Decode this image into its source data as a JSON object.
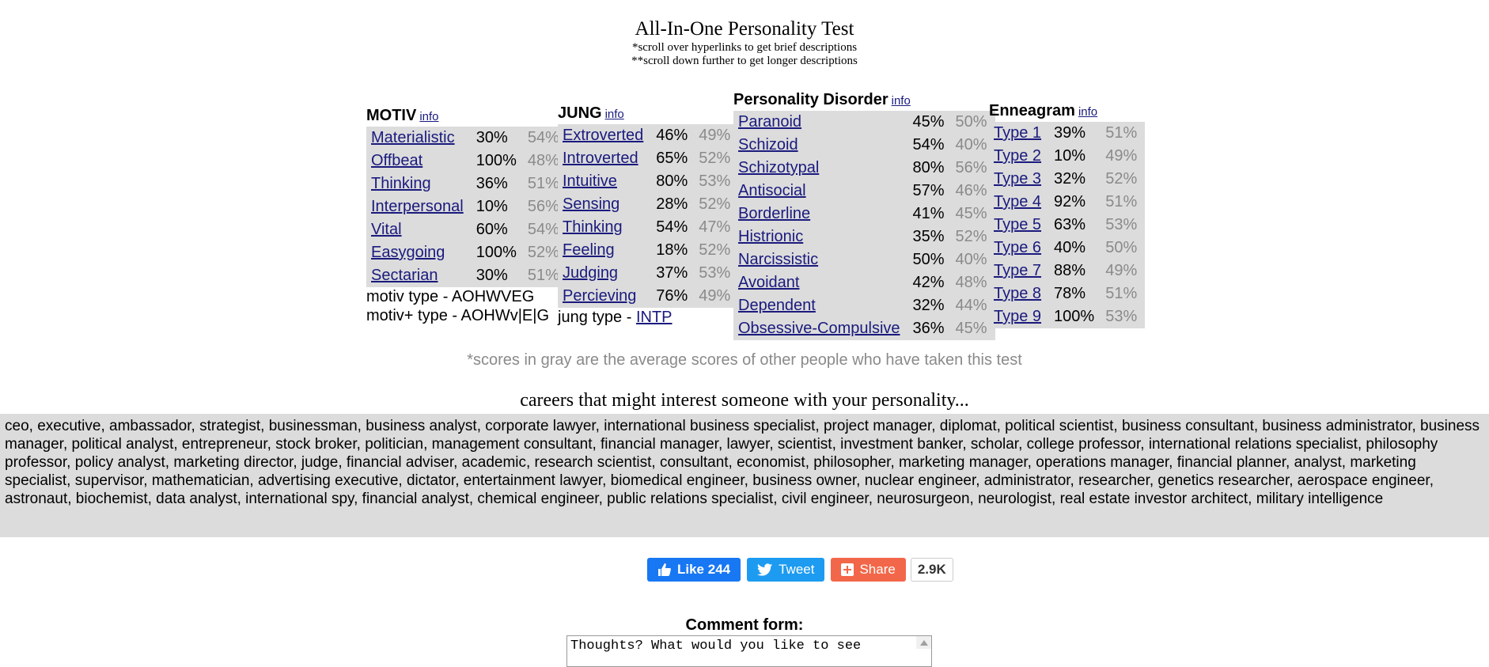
{
  "header": {
    "title": "All-In-One Personality Test",
    "note1": "*scroll over hyperlinks to get brief descriptions",
    "note2": "**scroll down further to get longer descriptions"
  },
  "motiv": {
    "heading": "MOTIV",
    "info": "info",
    "rows": [
      {
        "trait": "Materialistic",
        "pct": "30%",
        "avg": "54%"
      },
      {
        "trait": "Offbeat",
        "pct": "100%",
        "avg": "48%"
      },
      {
        "trait": "Thinking",
        "pct": "36%",
        "avg": "51%"
      },
      {
        "trait": "Interpersonal",
        "pct": "10%",
        "avg": "56%"
      },
      {
        "trait": "Vital",
        "pct": "60%",
        "avg": "54%"
      },
      {
        "trait": "Easygoing",
        "pct": "100%",
        "avg": "52%"
      },
      {
        "trait": "Sectarian",
        "pct": "30%",
        "avg": "51%"
      }
    ],
    "type_line": "motiv type - AOHWVEG",
    "plus_type_line": "motiv+ type - AOHWv|E|G"
  },
  "jung": {
    "heading": "JUNG",
    "info": "info",
    "rows": [
      {
        "trait": "Extroverted",
        "pct": "46%",
        "avg": "49%"
      },
      {
        "trait": "Introverted",
        "pct": "65%",
        "avg": "52%"
      },
      {
        "trait": "Intuitive",
        "pct": "80%",
        "avg": "53%"
      },
      {
        "trait": "Sensing",
        "pct": "28%",
        "avg": "52%"
      },
      {
        "trait": "Thinking",
        "pct": "54%",
        "avg": "47%"
      },
      {
        "trait": "Feeling",
        "pct": "18%",
        "avg": "52%"
      },
      {
        "trait": "Judging",
        "pct": "37%",
        "avg": "53%"
      },
      {
        "trait": "Percieving",
        "pct": "76%",
        "avg": "49%"
      }
    ],
    "type_prefix": "jung type - ",
    "type_value": "INTP"
  },
  "disorder": {
    "heading": "Personality Disorder",
    "info": "info",
    "rows": [
      {
        "trait": "Paranoid",
        "pct": "45%",
        "avg": "50%"
      },
      {
        "trait": "Schizoid",
        "pct": "54%",
        "avg": "40%"
      },
      {
        "trait": "Schizotypal",
        "pct": "80%",
        "avg": "56%"
      },
      {
        "trait": "Antisocial",
        "pct": "57%",
        "avg": "46%"
      },
      {
        "trait": "Borderline",
        "pct": "41%",
        "avg": "45%"
      },
      {
        "trait": "Histrionic",
        "pct": "35%",
        "avg": "52%"
      },
      {
        "trait": "Narcissistic",
        "pct": "50%",
        "avg": "40%"
      },
      {
        "trait": "Avoidant",
        "pct": "42%",
        "avg": "48%"
      },
      {
        "trait": "Dependent",
        "pct": "32%",
        "avg": "44%"
      },
      {
        "trait": "Obsessive-Compulsive",
        "pct": "36%",
        "avg": "45%"
      }
    ]
  },
  "enneagram": {
    "heading": "Enneagram",
    "info": "info",
    "rows": [
      {
        "trait": "Type 1",
        "pct": "39%",
        "avg": "51%"
      },
      {
        "trait": "Type 2",
        "pct": "10%",
        "avg": "49%"
      },
      {
        "trait": "Type 3",
        "pct": "32%",
        "avg": "52%"
      },
      {
        "trait": "Type 4",
        "pct": "92%",
        "avg": "51%"
      },
      {
        "trait": "Type 5",
        "pct": "63%",
        "avg": "53%"
      },
      {
        "trait": "Type 6",
        "pct": "40%",
        "avg": "50%"
      },
      {
        "trait": "Type 7",
        "pct": "88%",
        "avg": "49%"
      },
      {
        "trait": "Type 8",
        "pct": "78%",
        "avg": "51%"
      },
      {
        "trait": "Type 9",
        "pct": "100%",
        "avg": "53%"
      }
    ]
  },
  "avg_note": "*scores in gray are the average scores of other people who have taken this test",
  "careers": {
    "heading": "careers that might interest someone with your personality...",
    "text": "ceo, executive, ambassador, strategist, businessman, business analyst, corporate lawyer, international business specialist, project manager, diplomat, political scientist, business consultant, business administrator, business manager, political analyst, entrepreneur, stock broker, politician, management consultant, financial manager, lawyer, scientist, investment banker, scholar, college professor, international relations specialist, philosophy professor, policy analyst, marketing director, judge, financial adviser, academic, research scientist, consultant, economist, philosopher, marketing manager, operations manager, financial planner, analyst, marketing specialist, supervisor, mathematician, advertising executive, dictator, entertainment lawyer, biomedical engineer, business owner, nuclear engineer, administrator, researcher, genetics researcher, aerospace engineer, astronaut, biochemist, data analyst, international spy, financial analyst, chemical engineer, public relations specialist, civil engineer, neurosurgeon, neurologist, real estate investor architect, military intelligence"
  },
  "social": {
    "like_label": "Like 244",
    "tweet_label": "Tweet",
    "share_label": "Share",
    "share_count": "2.9K",
    "colors": {
      "like": "#1877f2",
      "tweet": "#1d9bf0",
      "share": "#f26749"
    }
  },
  "comment": {
    "label": "Comment form:",
    "value": "Thoughts? What would you like to see"
  }
}
